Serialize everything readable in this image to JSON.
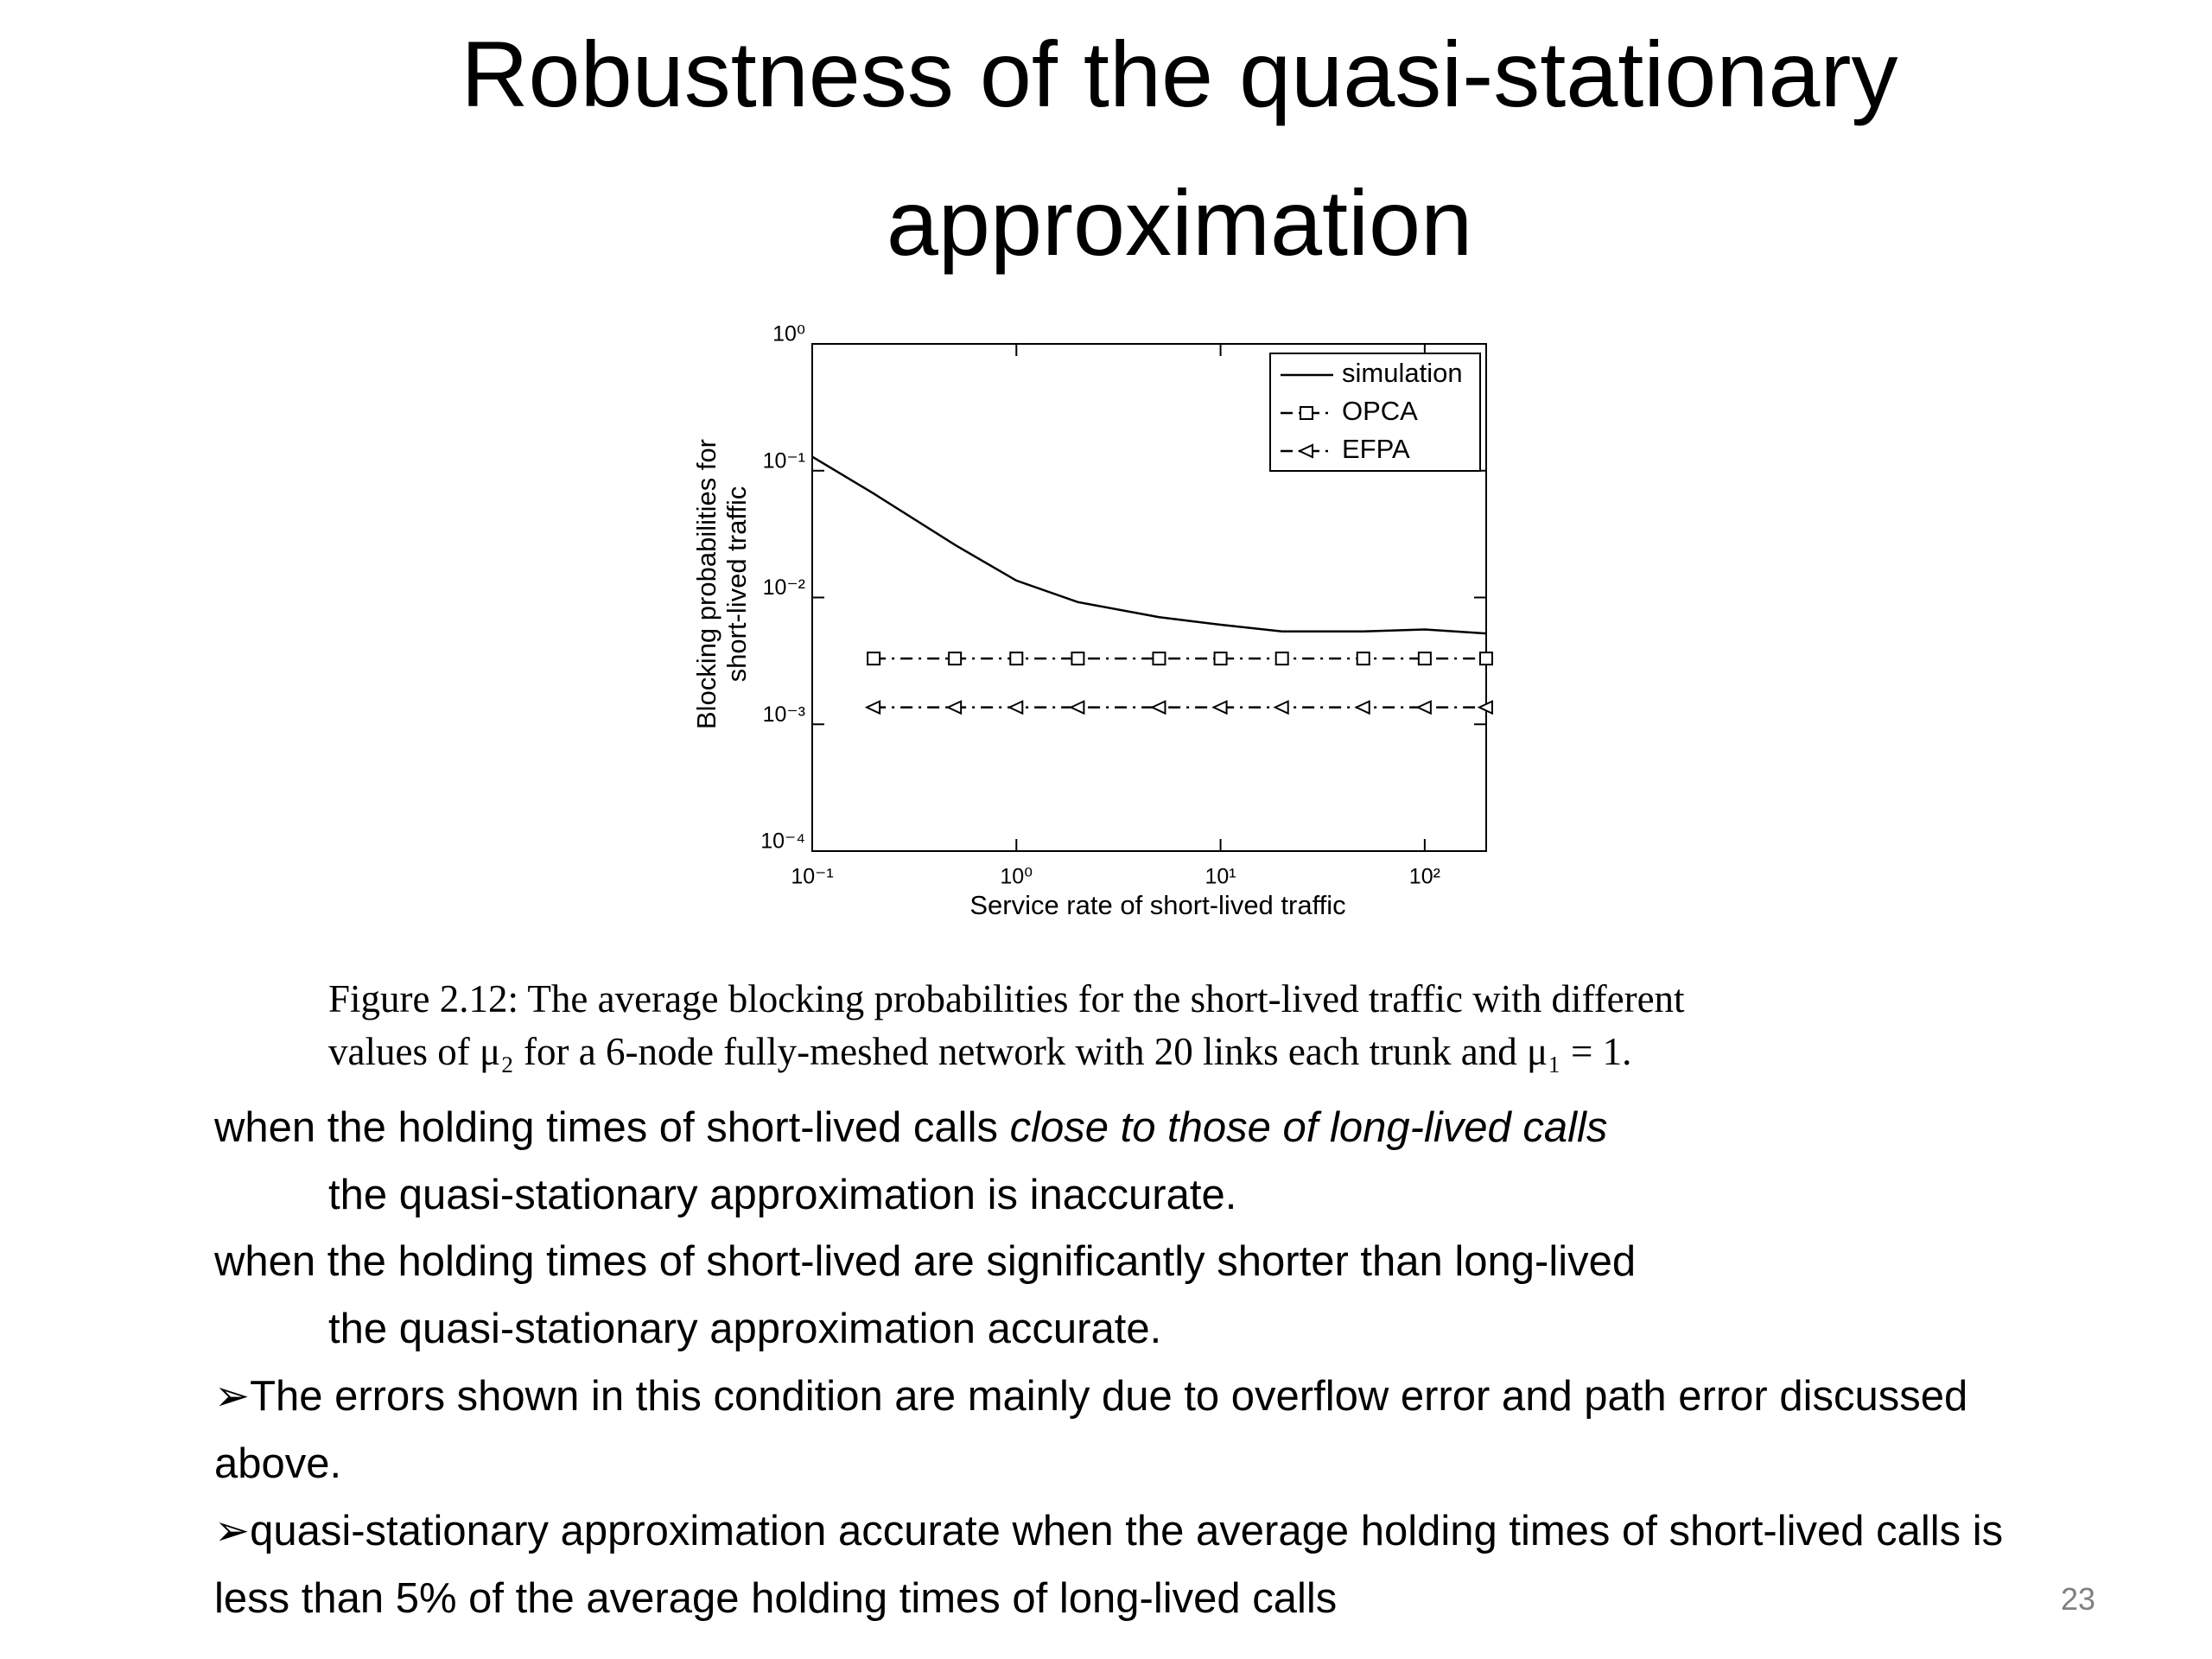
{
  "title": "Robustness of the quasi-stationary approximation",
  "chart_data": {
    "type": "line",
    "log_x": true,
    "log_y": true,
    "xlabel": "Service rate of short-lived traffic",
    "ylabel": [
      "Blocking probabilities for",
      "short-lived traffic"
    ],
    "xlim": [
      0.1,
      200
    ],
    "ylim": [
      0.0001,
      1
    ],
    "xticks": [
      {
        "value": 0.1,
        "label": "10⁻¹"
      },
      {
        "value": 1,
        "label": "10⁰"
      },
      {
        "value": 10,
        "label": "10¹"
      },
      {
        "value": 100,
        "label": "10²"
      }
    ],
    "yticks": [
      {
        "value": 0.0001,
        "label": "10⁻⁴"
      },
      {
        "value": 0.001,
        "label": "10⁻³"
      },
      {
        "value": 0.01,
        "label": "10⁻²"
      },
      {
        "value": 0.1,
        "label": "10⁻¹"
      },
      {
        "value": 1,
        "label": "10⁰"
      }
    ],
    "legend": "upper right",
    "series": [
      {
        "name": "simulation",
        "color": "#000000",
        "linestyle": "solid",
        "marker": "none",
        "x": [
          0.1,
          0.2,
          0.5,
          1,
          2,
          5,
          10,
          20,
          50,
          100,
          200
        ],
        "values": [
          0.129,
          0.066,
          0.026,
          0.0136,
          0.0092,
          0.007,
          0.0061,
          0.0054,
          0.0054,
          0.0056,
          0.0052
        ]
      },
      {
        "name": "OPCA",
        "color": "#000000",
        "linestyle": "dashdot",
        "marker": "square",
        "x": [
          0.2,
          0.5,
          1,
          2,
          5,
          10,
          20,
          50,
          100,
          200
        ],
        "values": [
          0.0033,
          0.0033,
          0.0033,
          0.0033,
          0.0033,
          0.0033,
          0.0033,
          0.0033,
          0.0033,
          0.0033
        ]
      },
      {
        "name": "EFPA",
        "color": "#000000",
        "linestyle": "dashdot",
        "marker": "triangle-left",
        "x": [
          0.2,
          0.5,
          1,
          2,
          5,
          10,
          20,
          50,
          100,
          200
        ],
        "values": [
          0.00136,
          0.00136,
          0.00136,
          0.00136,
          0.00136,
          0.00136,
          0.00136,
          0.00136,
          0.00136,
          0.00136
        ]
      }
    ]
  },
  "caption": [
    "Figure 2.12: The average blocking probabilities for the short-lived traffic with different",
    "values of μ₂ for a 6-node fully-meshed network with 20 links each trunk and μ₁ = 1."
  ],
  "body": [
    {
      "lead": "when the holding times of short-lived calls ",
      "italic": "close to those of long-lived calls",
      "continuation": "the quasi-stationary approximation is inaccurate."
    },
    {
      "lead": "when the holding times of short-lived are significantly shorter than long-lived",
      "continuation": "the quasi-stationary approximation  accurate."
    }
  ],
  "bullets": [
    "The errors shown in this condition are mainly due to overflow error and path error discussed above.",
    "quasi-stationary approximation  accurate  when the average holding times of short-lived calls is less than 5% of the average holding times of long-lived calls"
  ],
  "page_number": "23"
}
